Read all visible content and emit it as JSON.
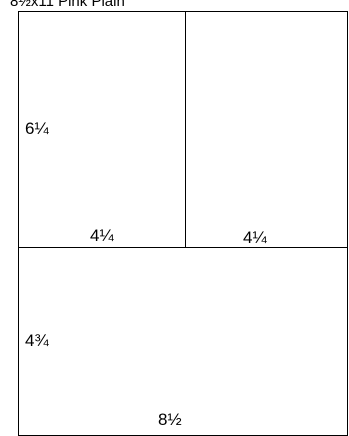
{
  "header": {
    "title": "8½x11 Pink Plain"
  },
  "sheet": {
    "top_section": {
      "height_label": "6¼",
      "left_panel_width_label": "4¼",
      "right_panel_width_label": "4¼"
    },
    "bottom_section": {
      "height_label": "4¾",
      "width_label": "8½"
    }
  }
}
